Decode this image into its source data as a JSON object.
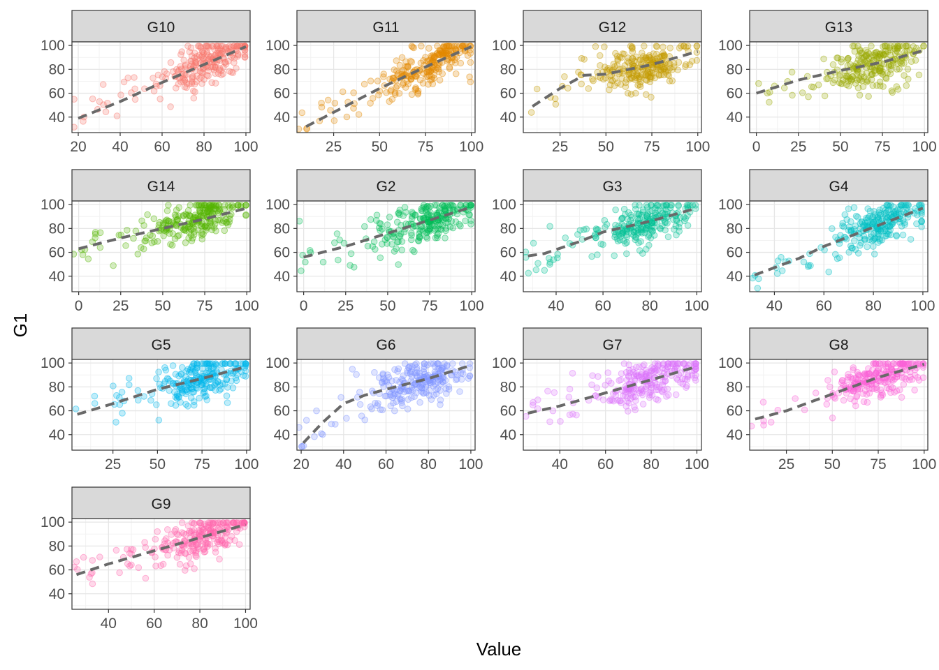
{
  "chart_data": {
    "type": "scatter",
    "xlabel": "Value",
    "ylabel": "G1",
    "grid": true,
    "legend": "none",
    "layout": "facet_wrap 4 columns, free x scales",
    "trend_line": {
      "style": "dashed",
      "color": "#696969"
    },
    "point_alpha": 0.25,
    "facets": [
      {
        "name": "G10",
        "color": "#F8766D",
        "xlim": [
          17,
          102
        ],
        "ylim": [
          27,
          103
        ],
        "xticks": [
          20,
          40,
          60,
          80,
          100
        ],
        "yticks": [
          40,
          60,
          80,
          100
        ],
        "trend": [
          [
            20,
            39
          ],
          [
            40,
            53
          ],
          [
            60,
            69
          ],
          [
            80,
            84
          ],
          [
            100,
            99
          ]
        ],
        "cloud_center": [
          82,
          83
        ]
      },
      {
        "name": "G11",
        "color": "#E38900",
        "xlim": [
          5,
          102
        ],
        "ylim": [
          27,
          103
        ],
        "xticks": [
          25,
          50,
          75,
          100
        ],
        "yticks": [
          40,
          60,
          80,
          100
        ],
        "trend": [
          [
            10,
            32
          ],
          [
            25,
            44
          ],
          [
            50,
            64
          ],
          [
            75,
            82
          ],
          [
            100,
            99
          ]
        ],
        "cloud_center": [
          78,
          83
        ]
      },
      {
        "name": "G12",
        "color": "#C49A00",
        "xlim": [
          5,
          102
        ],
        "ylim": [
          27,
          103
        ],
        "xticks": [
          25,
          50,
          75,
          100
        ],
        "yticks": [
          40,
          60,
          80,
          100
        ],
        "trend": [
          [
            10,
            49
          ],
          [
            25,
            64
          ],
          [
            38,
            75
          ],
          [
            50,
            76
          ],
          [
            75,
            84
          ],
          [
            100,
            95
          ]
        ],
        "cloud_center": [
          70,
          82
        ]
      },
      {
        "name": "G13",
        "color": "#99A800",
        "xlim": [
          -4,
          102
        ],
        "ylim": [
          27,
          103
        ],
        "xticks": [
          0,
          25,
          50,
          75,
          100
        ],
        "yticks": [
          40,
          60,
          80,
          100
        ],
        "trend": [
          [
            0,
            60
          ],
          [
            25,
            71
          ],
          [
            50,
            79
          ],
          [
            75,
            86
          ],
          [
            100,
            96
          ]
        ],
        "cloud_center": [
          72,
          84
        ]
      },
      {
        "name": "G14",
        "color": "#53B400",
        "xlim": [
          -4,
          102
        ],
        "ylim": [
          27,
          103
        ],
        "xticks": [
          0,
          25,
          50,
          75,
          100
        ],
        "yticks": [
          40,
          60,
          80,
          100
        ],
        "trend": [
          [
            0,
            63
          ],
          [
            25,
            72
          ],
          [
            50,
            80
          ],
          [
            75,
            88
          ],
          [
            100,
            97
          ]
        ],
        "cloud_center": [
          72,
          85
        ]
      },
      {
        "name": "G2",
        "color": "#00BC56",
        "xlim": [
          -4,
          102
        ],
        "ylim": [
          27,
          103
        ],
        "xticks": [
          0,
          25,
          50,
          75,
          100
        ],
        "yticks": [
          40,
          60,
          80,
          100
        ],
        "trend": [
          [
            0,
            56
          ],
          [
            25,
            65
          ],
          [
            50,
            76
          ],
          [
            75,
            87
          ],
          [
            100,
            98
          ]
        ],
        "cloud_center": [
          75,
          84
        ]
      },
      {
        "name": "G3",
        "color": "#00C094",
        "xlim": [
          26,
          102
        ],
        "ylim": [
          27,
          103
        ],
        "xticks": [
          40,
          60,
          80,
          100
        ],
        "yticks": [
          40,
          60,
          80,
          100
        ],
        "trend": [
          [
            28,
            57
          ],
          [
            35,
            59
          ],
          [
            50,
            69
          ],
          [
            60,
            77
          ],
          [
            80,
            86
          ],
          [
            100,
            97
          ]
        ],
        "cloud_center": [
          78,
          84
        ]
      },
      {
        "name": "G4",
        "color": "#00BFC4",
        "xlim": [
          30,
          102
        ],
        "ylim": [
          27,
          103
        ],
        "xticks": [
          40,
          60,
          80,
          100
        ],
        "yticks": [
          40,
          60,
          80,
          100
        ],
        "trend": [
          [
            32,
            41
          ],
          [
            50,
            55
          ],
          [
            60,
            65
          ],
          [
            80,
            81
          ],
          [
            100,
            97
          ]
        ],
        "cloud_center": [
          82,
          85
        ]
      },
      {
        "name": "G5",
        "color": "#00B6EB",
        "xlim": [
          2,
          102
        ],
        "ylim": [
          27,
          103
        ],
        "xticks": [
          25,
          50,
          75,
          100
        ],
        "yticks": [
          40,
          60,
          80,
          100
        ],
        "trend": [
          [
            5,
            57
          ],
          [
            25,
            66
          ],
          [
            50,
            78
          ],
          [
            75,
            87
          ],
          [
            100,
            97
          ]
        ],
        "cloud_center": [
          75,
          85
        ]
      },
      {
        "name": "G6",
        "color": "#06A4FF",
        "xlim": [
          18,
          102
        ],
        "ylim": [
          27,
          103
        ],
        "xticks": [
          20,
          40,
          60,
          80,
          100
        ],
        "yticks": [
          40,
          60,
          80,
          100
        ],
        "trend": [
          [
            21,
            33
          ],
          [
            30,
            50
          ],
          [
            40,
            66
          ],
          [
            50,
            73
          ],
          [
            60,
            78
          ],
          [
            80,
            87
          ],
          [
            100,
            98
          ]
        ],
        "cloud_center": [
          75,
          84
        ],
        "display_color": "#7F95FF"
      },
      {
        "name": "G7",
        "color": "#DB72FB",
        "xlim": [
          24,
          102
        ],
        "ylim": [
          27,
          103
        ],
        "xticks": [
          40,
          60,
          80,
          100
        ],
        "yticks": [
          40,
          60,
          80,
          100
        ],
        "trend": [
          [
            26,
            58
          ],
          [
            40,
            64
          ],
          [
            60,
            75
          ],
          [
            80,
            86
          ],
          [
            100,
            97
          ]
        ],
        "cloud_center": [
          82,
          85
        ]
      },
      {
        "name": "G8",
        "color": "#FB61D7",
        "xlim": [
          5,
          102
        ],
        "ylim": [
          27,
          103
        ],
        "xticks": [
          25,
          50,
          75,
          100
        ],
        "yticks": [
          40,
          60,
          80,
          100
        ],
        "trend": [
          [
            8,
            53
          ],
          [
            25,
            60
          ],
          [
            50,
            74
          ],
          [
            75,
            88
          ],
          [
            100,
            99
          ]
        ],
        "cloud_center": [
          75,
          85
        ]
      },
      {
        "name": "G9",
        "color": "#FF65AC",
        "xlim": [
          24,
          102
        ],
        "ylim": [
          27,
          103
        ],
        "xticks": [
          40,
          60,
          80,
          100
        ],
        "yticks": [
          40,
          60,
          80,
          100
        ],
        "trend": [
          [
            26,
            56
          ],
          [
            40,
            65
          ],
          [
            60,
            76
          ],
          [
            80,
            87
          ],
          [
            100,
            98
          ]
        ],
        "cloud_center": [
          82,
          85
        ]
      }
    ]
  }
}
